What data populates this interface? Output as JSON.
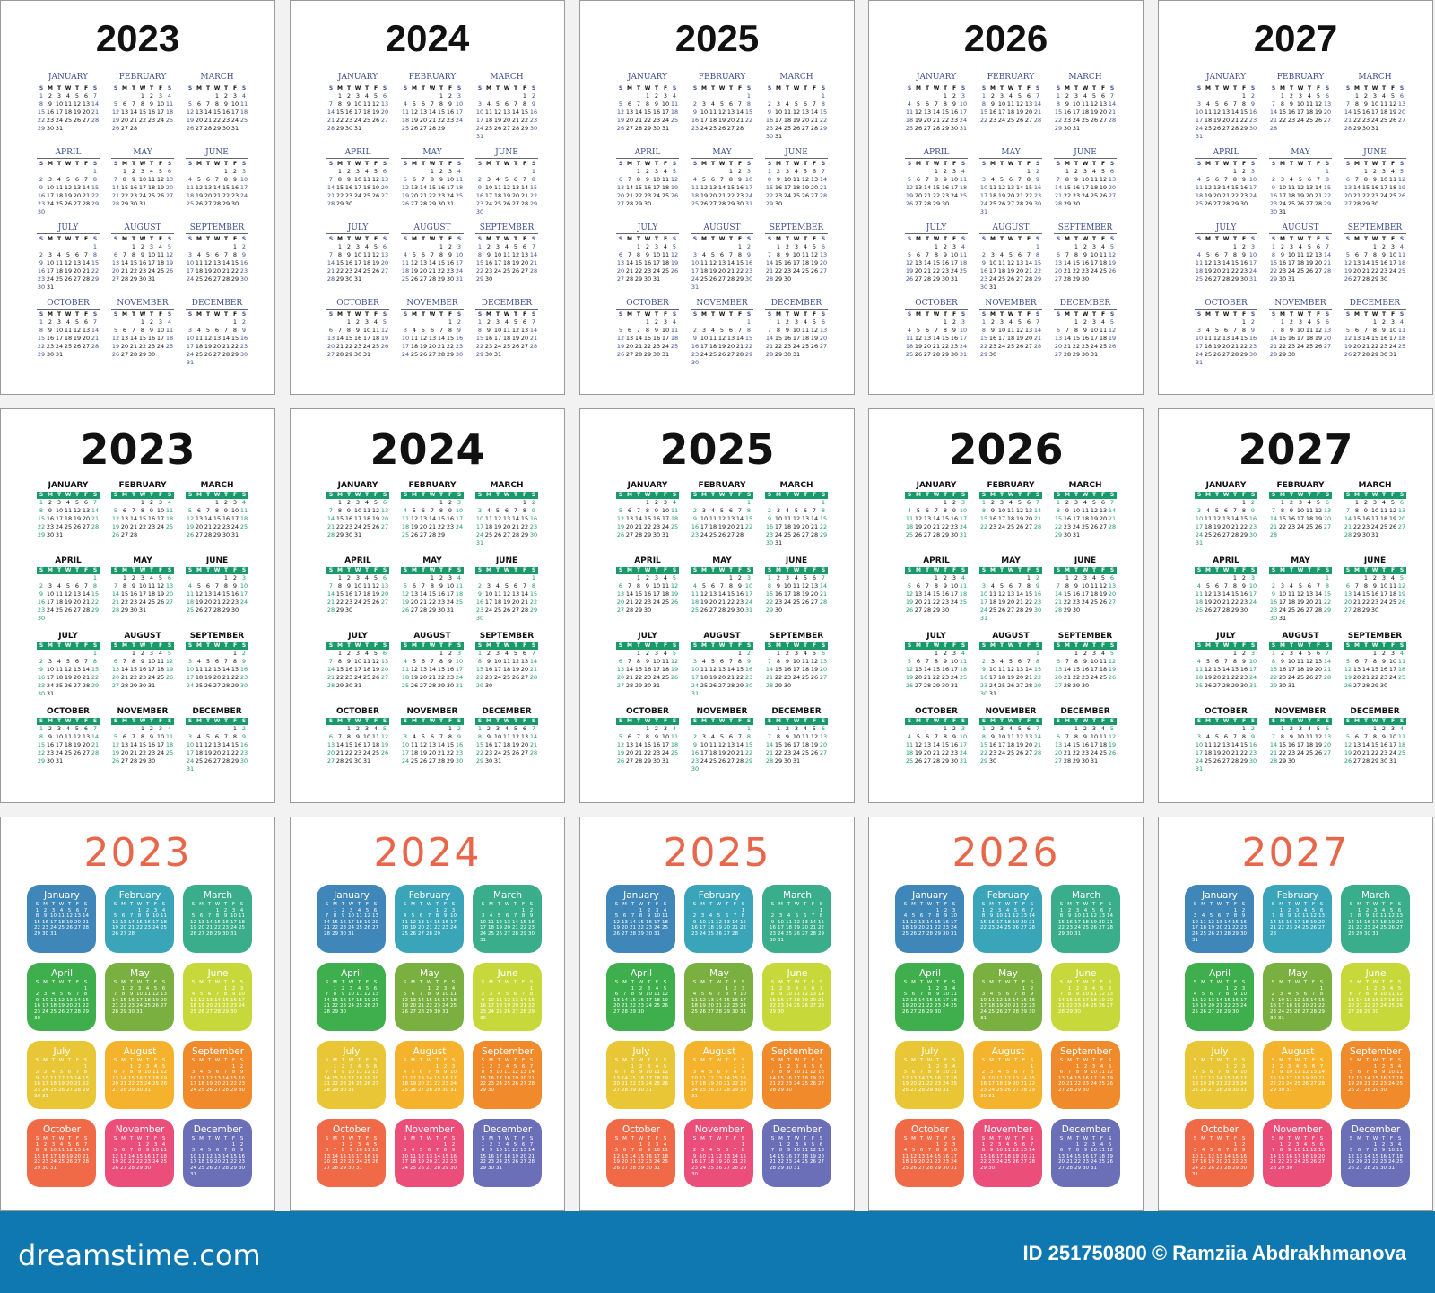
{
  "years": [
    "2023",
    "2024",
    "2025",
    "2026",
    "2027"
  ],
  "weekday_header": [
    "S",
    "M",
    "T",
    "W",
    "T",
    "F",
    "S"
  ],
  "months_upper": [
    "JANUARY",
    "FEBRUARY",
    "MARCH",
    "APRIL",
    "MAY",
    "JUNE",
    "JULY",
    "AUGUST",
    "SEPTEMBER",
    "OCTOBER",
    "NOVEMBER",
    "DECEMBER"
  ],
  "months_title": [
    "January",
    "February",
    "March",
    "April",
    "May",
    "June",
    "July",
    "August",
    "September",
    "October",
    "November",
    "December"
  ],
  "styles": [
    {
      "name": "classic-navy",
      "accent": "#3c4f8f"
    },
    {
      "name": "bold-green",
      "accent": "#1a9a6a"
    },
    {
      "name": "colorful-tiles",
      "accent": "#e8674a"
    }
  ],
  "tile_colors": [
    "#3f87b8",
    "#3aa5b8",
    "#3aae8a",
    "#3fae4d",
    "#7ab040",
    "#c7d93a",
    "#e8c636",
    "#f5b32d",
    "#f08a2a",
    "#f06a48",
    "#ec4e7a",
    "#6a6fb8"
  ],
  "footer": {
    "brand": "dreamstime.com",
    "credit": "ID 251750800 © Ramziia Abdrakhmanova",
    "background": "#1078b0"
  }
}
